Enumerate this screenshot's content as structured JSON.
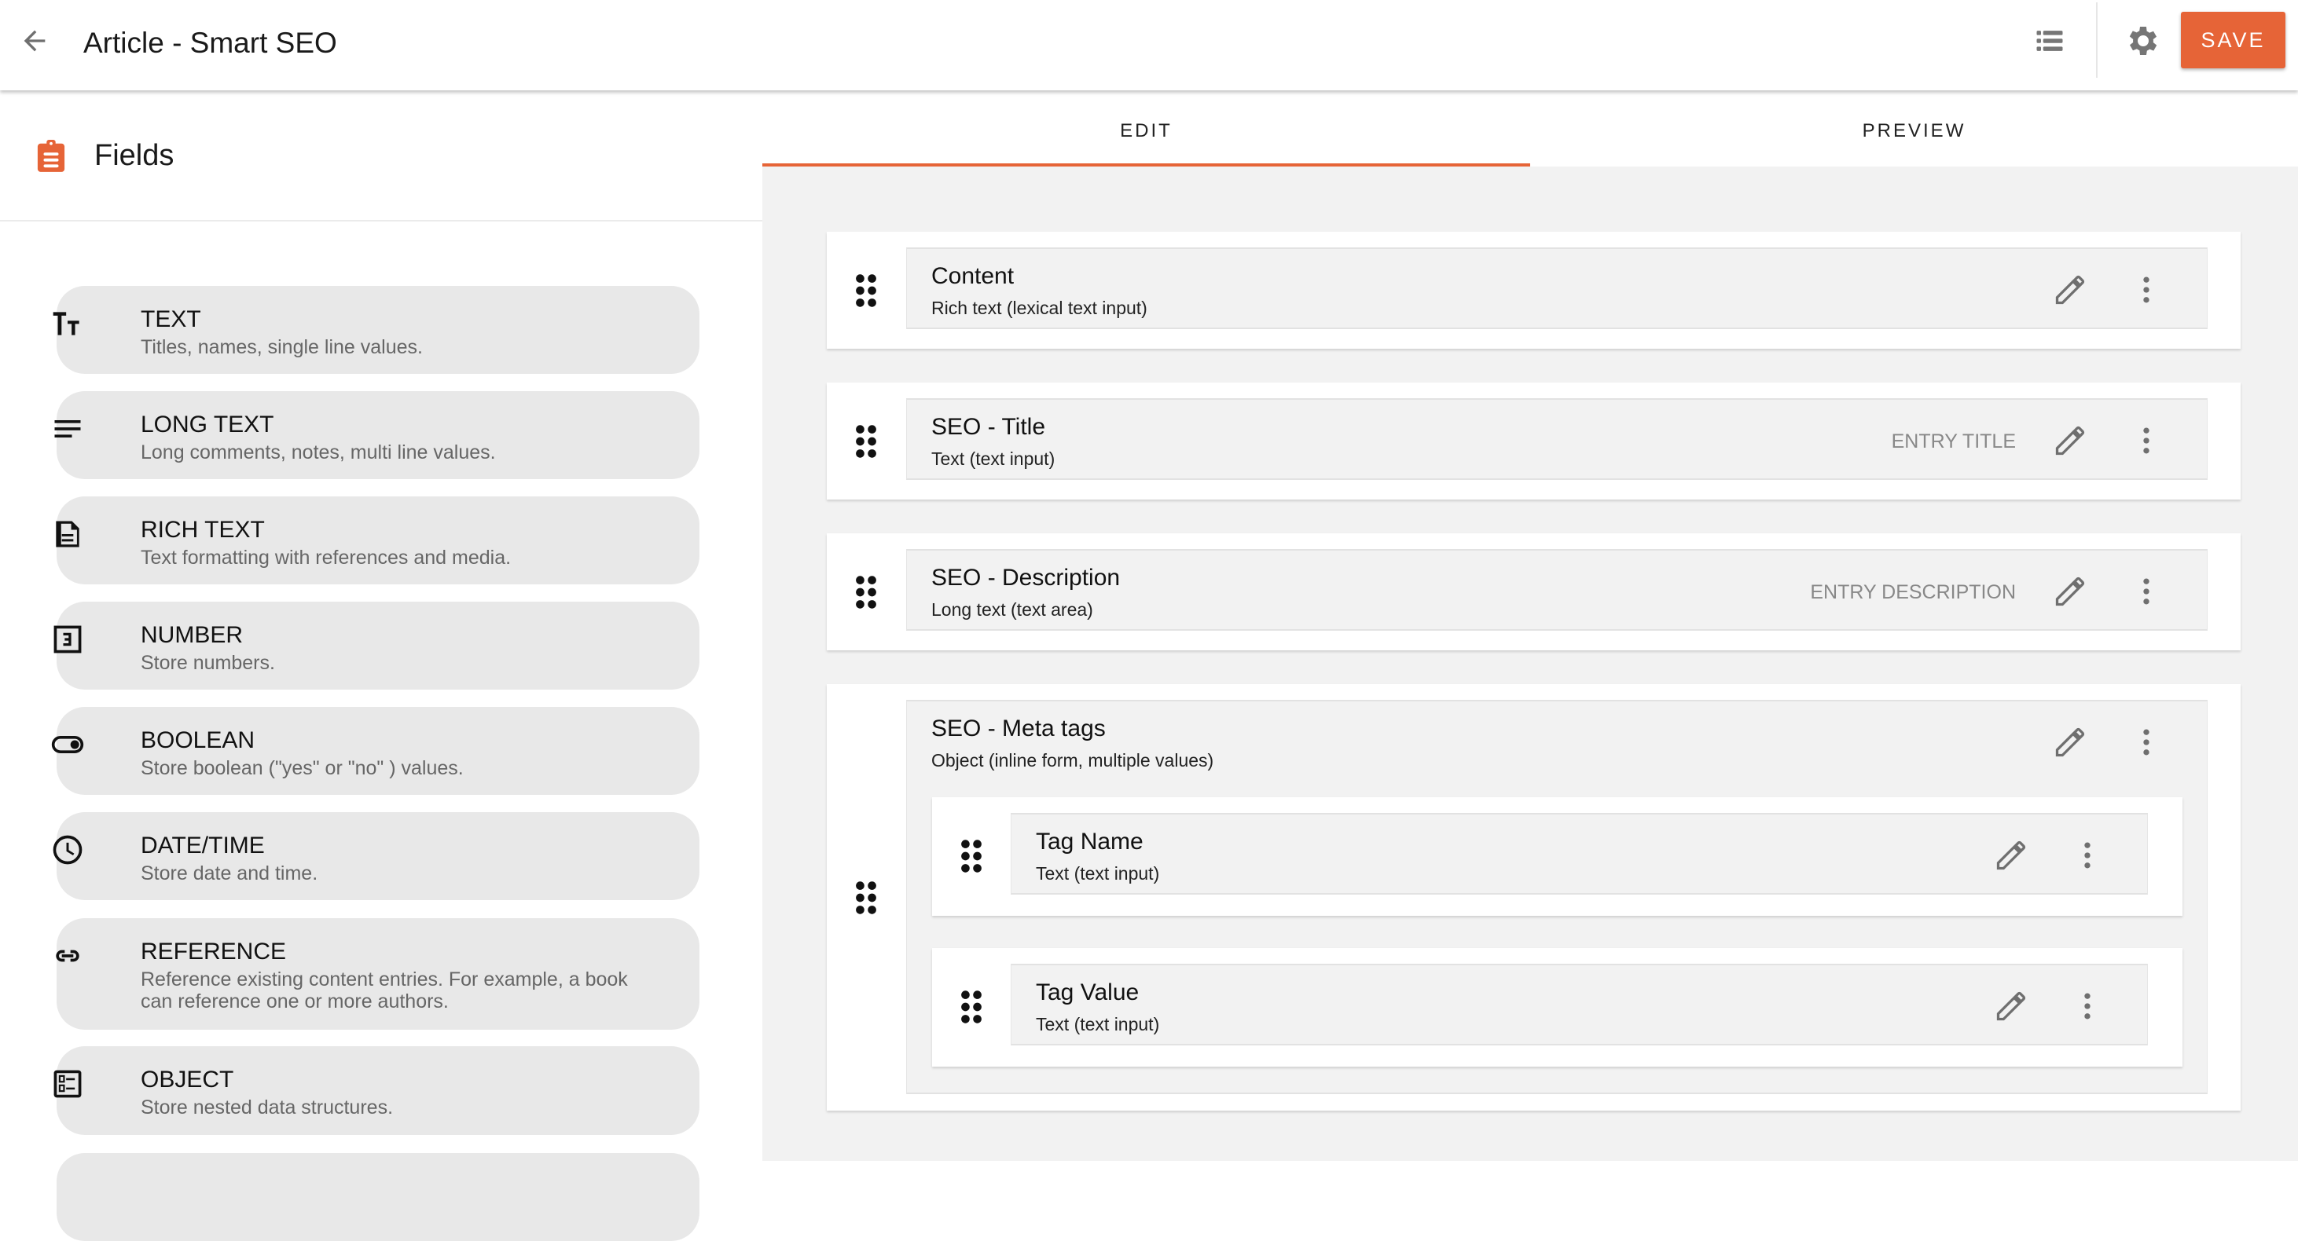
{
  "header": {
    "title": "Article - Smart SEO",
    "save_label": "SAVE",
    "accent": "#e66437"
  },
  "sidebar": {
    "title": "Fields",
    "items": [
      {
        "icon": "text-format-icon",
        "label": "TEXT",
        "description": "Titles, names, single line values."
      },
      {
        "icon": "long-text-icon",
        "label": "LONG TEXT",
        "description": "Long comments, notes, multi line values."
      },
      {
        "icon": "rich-text-icon",
        "label": "RICH TEXT",
        "description": "Text formatting with references and media."
      },
      {
        "icon": "number-icon",
        "label": "NUMBER",
        "description": "Store numbers."
      },
      {
        "icon": "toggle-icon",
        "label": "BOOLEAN",
        "description": "Store boolean (\"yes\" or \"no\" ) values."
      },
      {
        "icon": "clock-icon",
        "label": "DATE/TIME",
        "description": "Store date and time."
      },
      {
        "icon": "link-icon",
        "label": "REFERENCE",
        "description": "Reference existing content entries. For example, a book can reference one or more authors."
      },
      {
        "icon": "object-icon",
        "label": "OBJECT",
        "description": "Store nested data structures."
      },
      {
        "icon": "",
        "label": "",
        "description": ""
      }
    ]
  },
  "tabs": [
    {
      "label": "EDIT",
      "active": true
    },
    {
      "label": "PREVIEW",
      "active": false
    }
  ],
  "fields": [
    {
      "name": "Content",
      "type": "Rich text (lexical text input)",
      "badge": ""
    },
    {
      "name": "SEO - Title",
      "type": "Text (text input)",
      "badge": "ENTRY TITLE"
    },
    {
      "name": "SEO - Description",
      "type": "Long text (text area)",
      "badge": "ENTRY DESCRIPTION"
    },
    {
      "name": "SEO - Meta tags",
      "type": "Object (inline form, multiple values)",
      "badge": "",
      "children": [
        {
          "name": "Tag Name",
          "type": "Text (text input)"
        },
        {
          "name": "Tag Value",
          "type": "Text (text input)"
        }
      ]
    }
  ]
}
